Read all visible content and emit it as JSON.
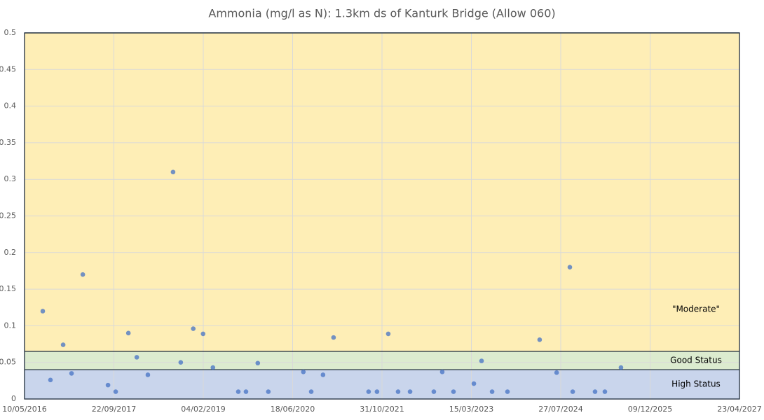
{
  "chart_data": {
    "type": "scatter",
    "title": "Ammonia (mg/l as N): 1.3km ds of Kanturk Bridge (Allow 060)",
    "xlim": [
      "10/05/2016",
      "23/04/2027"
    ],
    "xticks": [
      "10/05/2016",
      "22/09/2017",
      "04/02/2019",
      "18/06/2020",
      "31/10/2021",
      "15/03/2023",
      "27/07/2024",
      "09/12/2025",
      "23/04/2027"
    ],
    "ylim": [
      0,
      0.5
    ],
    "yticks": [
      0,
      0.05,
      0.1,
      0.15,
      0.2,
      0.25,
      0.3,
      0.35,
      0.4,
      0.45,
      0.5
    ],
    "grid": true,
    "bands": [
      {
        "label": "High Status",
        "from": 0,
        "to": 0.04,
        "color": "#c9d5ec"
      },
      {
        "label": "Good Status",
        "from": 0.04,
        "to": 0.065,
        "color": "#dcebcf"
      },
      {
        "label": "\"Moderate\"",
        "from": 0.065,
        "to": 0.5,
        "color": "#feeeb6"
      }
    ],
    "series": [
      {
        "color": "#4472c4",
        "x": [
          "20/08/2016",
          "02/10/2016",
          "12/12/2016",
          "28/01/2017",
          "01/04/2017",
          "20/08/2017",
          "02/10/2017",
          "12/12/2017",
          "28/01/2018",
          "31/03/2018",
          "19/08/2018",
          "01/10/2018",
          "10/12/2018",
          "03/02/2019",
          "30/03/2019",
          "19/08/2019",
          "01/10/2019",
          "06/12/2019",
          "03/02/2020",
          "17/08/2020",
          "30/09/2020",
          "05/12/2020",
          "02/02/2021",
          "17/08/2021",
          "03/10/2021",
          "05/12/2021",
          "29/01/2022",
          "06/04/2022",
          "17/08/2022",
          "03/10/2022",
          "05/12/2022",
          "29/03/2023",
          "11/05/2023",
          "09/07/2023",
          "03/10/2023",
          "31/03/2024",
          "04/07/2024",
          "16/09/2024",
          "02/10/2024",
          "04/02/2025",
          "31/03/2025",
          "29/06/2025"
        ],
        "values": [
          0.12,
          0.026,
          0.074,
          0.035,
          0.17,
          0.019,
          0.01,
          0.09,
          0.057,
          0.033,
          0.31,
          0.05,
          0.096,
          0.089,
          0.043,
          0.01,
          0.01,
          0.049,
          0.01,
          0.037,
          0.01,
          0.033,
          0.084,
          0.01,
          0.01,
          0.089,
          0.01,
          0.01,
          0.01,
          0.037,
          0.01,
          0.021,
          0.052,
          0.01,
          0.01,
          0.081,
          0.036,
          0.18,
          0.01,
          0.01,
          0.01,
          0.043
        ]
      }
    ]
  }
}
